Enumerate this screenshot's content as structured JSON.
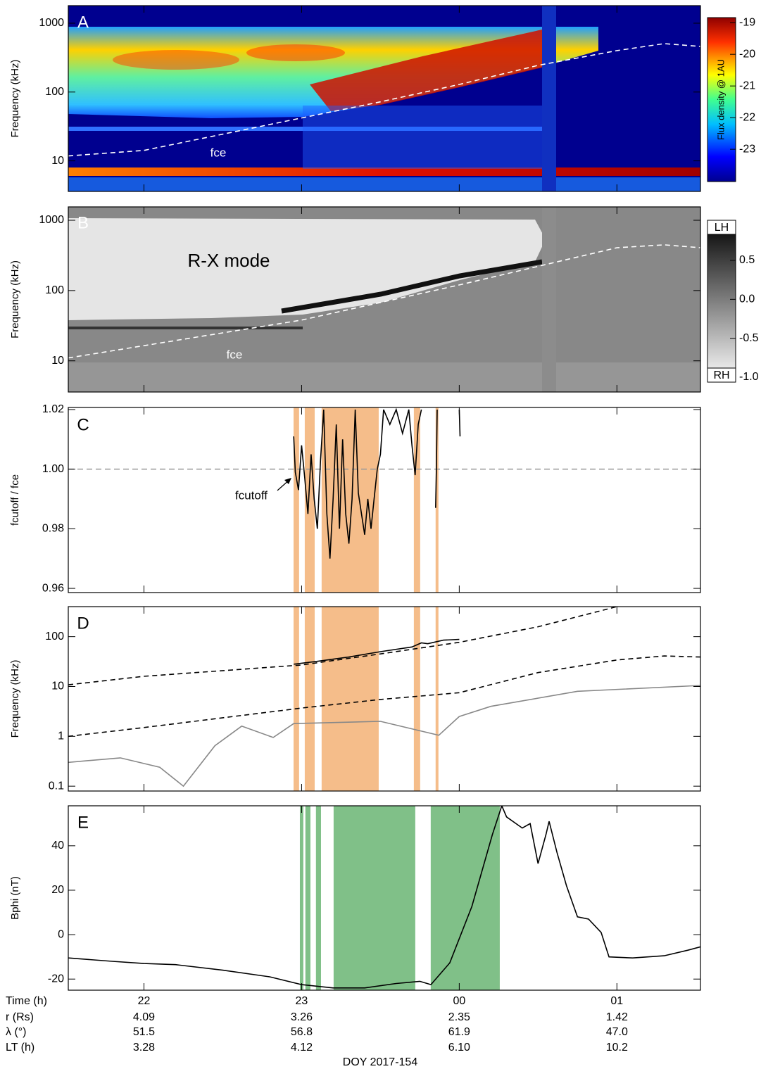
{
  "xaxis": {
    "label": "Time (h)",
    "xlim": [
      21.52,
      25.53
    ],
    "xticks": [
      22,
      23,
      {
        "value": 24,
        "label": "00"
      },
      {
        "value": 25,
        "label": "01"
      }
    ],
    "title": "DOY 2017-154"
  },
  "ephemeris": [
    {
      "label": "r (Rs)",
      "values": [
        "4.09",
        "3.26",
        "2.35",
        "1.42"
      ]
    },
    {
      "label": "λ (°)",
      "values": [
        "51.5",
        "56.8",
        "61.9",
        "47.0"
      ]
    },
    {
      "label": "LT (h)",
      "values": [
        "3.28",
        "4.12",
        "6.10",
        "10.2"
      ]
    }
  ],
  "chart_data": [
    {
      "type": "spectrogram",
      "label": "A",
      "ylabel": "Frequency (kHz)",
      "log_y": true,
      "ylim": [
        3.6,
        1800
      ],
      "yticks": [
        10,
        100,
        1000
      ],
      "annotations": [
        "fce"
      ],
      "series": [
        {
          "color": "#ffffff",
          "dash": true,
          "x": [
            21.52,
            22,
            23,
            23.5,
            24,
            24.5,
            25,
            25.3,
            25.53
          ],
          "values": [
            11.8,
            14.2,
            42,
            72,
            129,
            244,
            400,
            505,
            460
          ]
        }
      ],
      "colorbar": {
        "colormap": "jet",
        "label": "Flux density @ 1AU",
        "lim": [
          -24.02,
          -18.84
        ],
        "ticks": [
          -19,
          -20,
          -21,
          -22,
          -23
        ]
      }
    },
    {
      "type": "spectrogram",
      "label": "B",
      "ylabel": "Frequency (kHz)",
      "log_y": true,
      "ylim": [
        3.6,
        1550
      ],
      "yticks": [
        10,
        100,
        1000
      ],
      "annotations": [
        "R-X mode",
        "fce"
      ],
      "series": [
        {
          "color": "#ffffff",
          "dash": true,
          "x": [
            21.52,
            23,
            24,
            25,
            25.3,
            25.53
          ],
          "values": [
            11,
            38,
            120,
            407,
            447,
            407
          ]
        }
      ],
      "colorbar": {
        "colormap": "gray",
        "top_label": "LH",
        "bottom_label": "RH",
        "lim": [
          -1.063,
          1.015
        ],
        "ticks": [
          0.5,
          {
            "value": 0,
            "label": "0.0"
          },
          -0.5,
          {
            "value": -1,
            "label": "-1.0"
          }
        ]
      }
    },
    {
      "type": "line",
      "label": "C",
      "ylabel": "fcutoff / fce",
      "log_y": false,
      "ylim": [
        0.9586,
        1.0207
      ],
      "yticks": [
        0.96,
        0.98,
        {
          "value": 1,
          "label": "1.00"
        },
        1.02
      ],
      "hline": 1,
      "annotations": [
        "fcutoff"
      ],
      "shaded_intervals": {
        "color": "#f5bd8a",
        "intervals": [
          [
            22.949,
            22.984
          ],
          [
            23.02,
            23.083
          ],
          [
            23.127,
            23.489
          ],
          [
            23.712,
            23.752
          ],
          [
            23.85,
            23.868
          ]
        ]
      },
      "series": [
        {
          "color": "#000000",
          "dash": false,
          "x": [
            22.95,
            22.96,
            22.98,
            23.0,
            23.02,
            23.04,
            23.06,
            23.08,
            23.1,
            23.12,
            23.14,
            23.16,
            23.18,
            23.2,
            23.22,
            23.24,
            23.26,
            23.28,
            23.3,
            23.32,
            23.34,
            23.36,
            23.38,
            23.4,
            23.42,
            23.44,
            23.46,
            23.48,
            23.5,
            23.52,
            23.56,
            23.6,
            23.64,
            23.68,
            23.7,
            23.72,
            23.74,
            23.76,
            23.8,
            23.85,
            23.855,
            23.86,
            23.9,
            24.0,
            24.005
          ],
          "values": [
            1.011,
            0.999,
            0.993,
            1.008,
            0.997,
            0.985,
            1.005,
            0.99,
            0.98,
            1.003,
            1.02,
            0.985,
            0.97,
            0.99,
            1.015,
            0.98,
            1.01,
            0.985,
            0.975,
            0.99,
            1.02,
            0.992,
            0.985,
            0.978,
            0.99,
            0.98,
            0.99,
            1.0,
            1.005,
            1.02,
            1.015,
            1.02,
            1.012,
            1.02,
            1.008,
            0.998,
            1.015,
            1.02,
            null,
            0.987,
            1.0,
            1.02,
            null,
            1.02,
            1.011
          ]
        }
      ]
    },
    {
      "type": "line",
      "label": "D",
      "ylabel": "Frequency (kHz)",
      "log_y": true,
      "ylim": [
        0.08,
        400
      ],
      "yticks": [
        0.1,
        1,
        10,
        100
      ],
      "shaded_intervals": {
        "color": "#f5bd8a",
        "intervals": [
          [
            22.949,
            22.984
          ],
          [
            23.02,
            23.083
          ],
          [
            23.127,
            23.489
          ],
          [
            23.712,
            23.752
          ],
          [
            23.85,
            23.868
          ]
        ]
      },
      "series": [
        {
          "color": "#000000",
          "dash": true,
          "x": [
            21.52,
            22,
            23,
            23.5,
            24,
            24.5,
            25
          ],
          "values": [
            10.8,
            16,
            27,
            45,
            77,
            158,
            400
          ]
        },
        {
          "color": "#000000",
          "dash": true,
          "x": [
            21.52,
            22,
            23,
            23.5,
            24,
            24.5,
            25,
            25.3,
            25.53
          ],
          "values": [
            1.0,
            1.5,
            3.7,
            5.5,
            7.5,
            19,
            34,
            41,
            39
          ]
        },
        {
          "color": "#888888",
          "dash": false,
          "x": [
            21.52,
            21.85,
            22.1,
            22.25,
            22.45,
            22.62,
            22.82,
            22.95,
            23.5,
            23.87,
            24.0,
            24.2,
            24.75,
            25.53
          ],
          "values": [
            0.3,
            0.37,
            0.24,
            0.1,
            0.65,
            1.6,
            0.95,
            1.8,
            2.0,
            1.05,
            2.5,
            4,
            8,
            10.5
          ]
        },
        {
          "color": "#000000",
          "dash": false,
          "x": [
            22.95,
            23.1,
            23.3,
            23.5,
            23.7,
            23.76,
            23.8,
            23.9,
            24.0
          ],
          "values": [
            28,
            32,
            39,
            50,
            62,
            75,
            72,
            85,
            88
          ]
        }
      ]
    },
    {
      "type": "line",
      "label": "E",
      "ylabel": "Bphi (nT)",
      "log_y": false,
      "ylim": [
        -25,
        58
      ],
      "yticks": [
        -20,
        0,
        20,
        40
      ],
      "shaded_intervals": {
        "color": "#80c088",
        "intervals": [
          [
            22.989,
            23.011
          ],
          [
            23.024,
            23.056
          ],
          [
            23.091,
            23.123
          ],
          [
            23.203,
            23.721
          ],
          [
            23.819,
            24.257
          ]
        ]
      },
      "series": [
        {
          "color": "#000000",
          "dash": false,
          "x": [
            21.52,
            21.8,
            22.0,
            22.2,
            22.5,
            22.8,
            23.0,
            23.2,
            23.4,
            23.6,
            23.75,
            23.82,
            23.94,
            24.08,
            24.21,
            24.27,
            24.3,
            24.4,
            24.45,
            24.5,
            24.55,
            24.57,
            24.62,
            24.68,
            24.72,
            24.75,
            24.82,
            24.9,
            24.95,
            25.1,
            25.3,
            25.45,
            25.53
          ],
          "values": [
            -10.5,
            -12,
            -13,
            -13.5,
            -16,
            -19,
            -22.5,
            -24,
            -24,
            -22,
            -21,
            -22.5,
            -12.7,
            12.7,
            45,
            58,
            53,
            48,
            50,
            32,
            45,
            51,
            37,
            22,
            14,
            8,
            7,
            1,
            -10,
            -10.5,
            -9.5,
            -7,
            -5.5
          ]
        }
      ]
    }
  ]
}
